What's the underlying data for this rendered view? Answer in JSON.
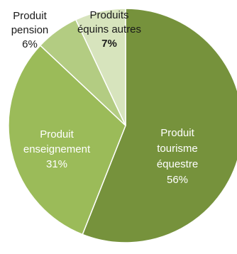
{
  "chart_data": {
    "type": "pie",
    "start_angle_deg": 0,
    "direction": "clockwise",
    "slices": [
      {
        "label_lines": [
          "Produit",
          "tourisme",
          "équestre"
        ],
        "value_text": "56%",
        "value": 56,
        "color": "#76923c",
        "label_style": "inside"
      },
      {
        "label_lines": [
          "Produit",
          "enseignement"
        ],
        "value_text": "31%",
        "value": 31,
        "color": "#9bbb59",
        "label_style": "inside"
      },
      {
        "label_lines": [
          "Produit",
          "pension"
        ],
        "value_text": "6%",
        "value": 6,
        "color": "#b3cc82",
        "label_style": "outside"
      },
      {
        "label_lines": [
          "Produits",
          "équins autres"
        ],
        "value_text": "7%",
        "value": 7,
        "color": "#d7e4bd",
        "label_style": "outside"
      }
    ],
    "legend": "none"
  }
}
